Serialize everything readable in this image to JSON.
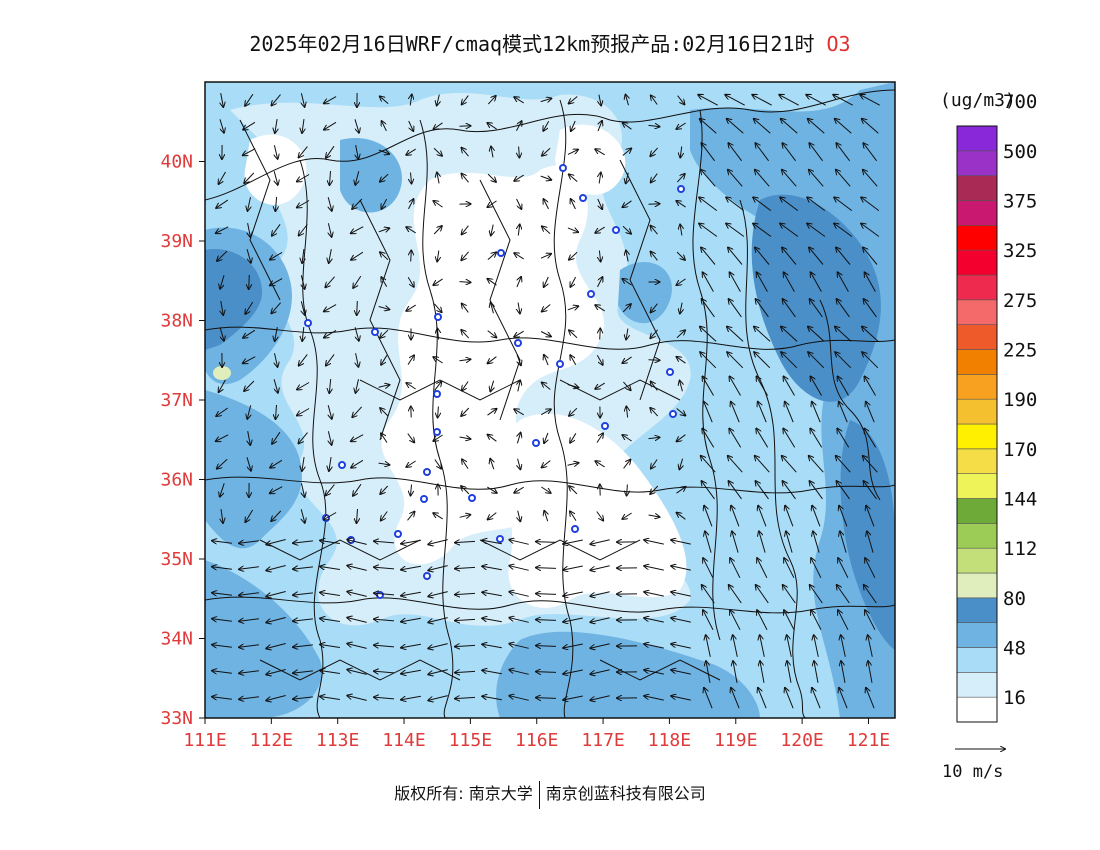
{
  "title": {
    "text": "2025年02月16日WRF/cmaq模式12km预报产品:02月16日21时",
    "species": "O3"
  },
  "map": {
    "lon_ticks": [
      "111E",
      "112E",
      "113E",
      "114E",
      "115E",
      "116E",
      "117E",
      "118E",
      "119E",
      "120E",
      "121E"
    ],
    "lat_ticks": [
      "33N",
      "34N",
      "35N",
      "36N",
      "37N",
      "38N",
      "39N",
      "40N"
    ],
    "extent": {
      "lon": [
        111.0,
        121.4
      ],
      "lat": [
        33.0,
        41.0
      ]
    }
  },
  "colorbar": {
    "unit": "(ug/m3)",
    "levels": [
      "16",
      "48",
      "80",
      "112",
      "144",
      "170",
      "190",
      "225",
      "275",
      "325",
      "375",
      "500",
      "700"
    ],
    "colors": [
      "#ffffff",
      "#d6eefa",
      "#a9dcf6",
      "#6fb3e3",
      "#4a8fc8",
      "#dfeebc",
      "#c2df7a",
      "#9ccc55",
      "#6eaa38",
      "#eef35a",
      "#f5dd48",
      "#fff000",
      "#f5c030",
      "#f8a020",
      "#f28000",
      "#ee5a2a",
      "#f46a6a",
      "#ee2a4e",
      "#f3002e",
      "#ff0000",
      "#c81870",
      "#a82a55",
      "#9b32c8",
      "#8828d8"
    ]
  },
  "wind_reference": {
    "label": "10 m/s"
  },
  "footer": {
    "left": "版权所有: 南京大学",
    "right": "南京创蓝科技有限公司"
  }
}
